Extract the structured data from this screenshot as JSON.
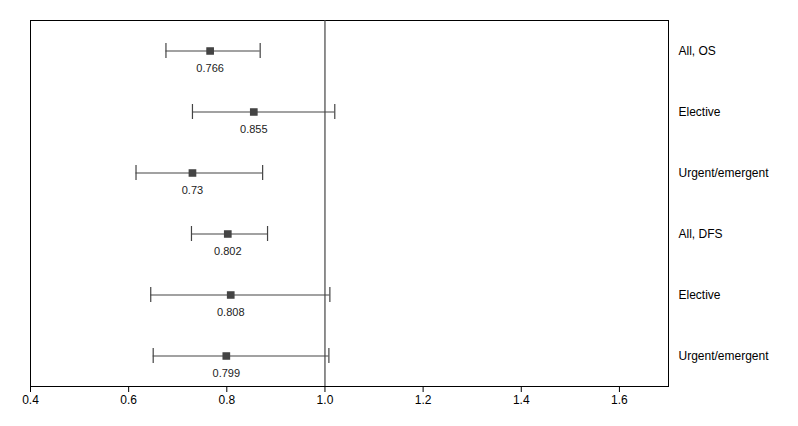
{
  "chart_data": {
    "type": "forest",
    "categories": [
      "All, OS",
      "Elective",
      "Urgent/emergent",
      "All, DFS",
      "Elective",
      "Urgent/emergent"
    ],
    "values": [
      0.766,
      0.855,
      0.73,
      0.802,
      0.808,
      0.799
    ],
    "ci_lo": [
      0.676,
      0.73,
      0.615,
      0.728,
      0.645,
      0.65
    ],
    "ci_hi": [
      0.868,
      1.02,
      0.873,
      0.883,
      1.01,
      1.008
    ],
    "data_labels": true,
    "color": "#444444",
    "vline": 1.0,
    "xlim": [
      0.4,
      1.7
    ],
    "xticks": [
      0.4,
      0.6,
      0.8,
      {
        "value": 1.0,
        "label": "1.0"
      },
      1.2,
      1.4,
      1.6
    ]
  }
}
